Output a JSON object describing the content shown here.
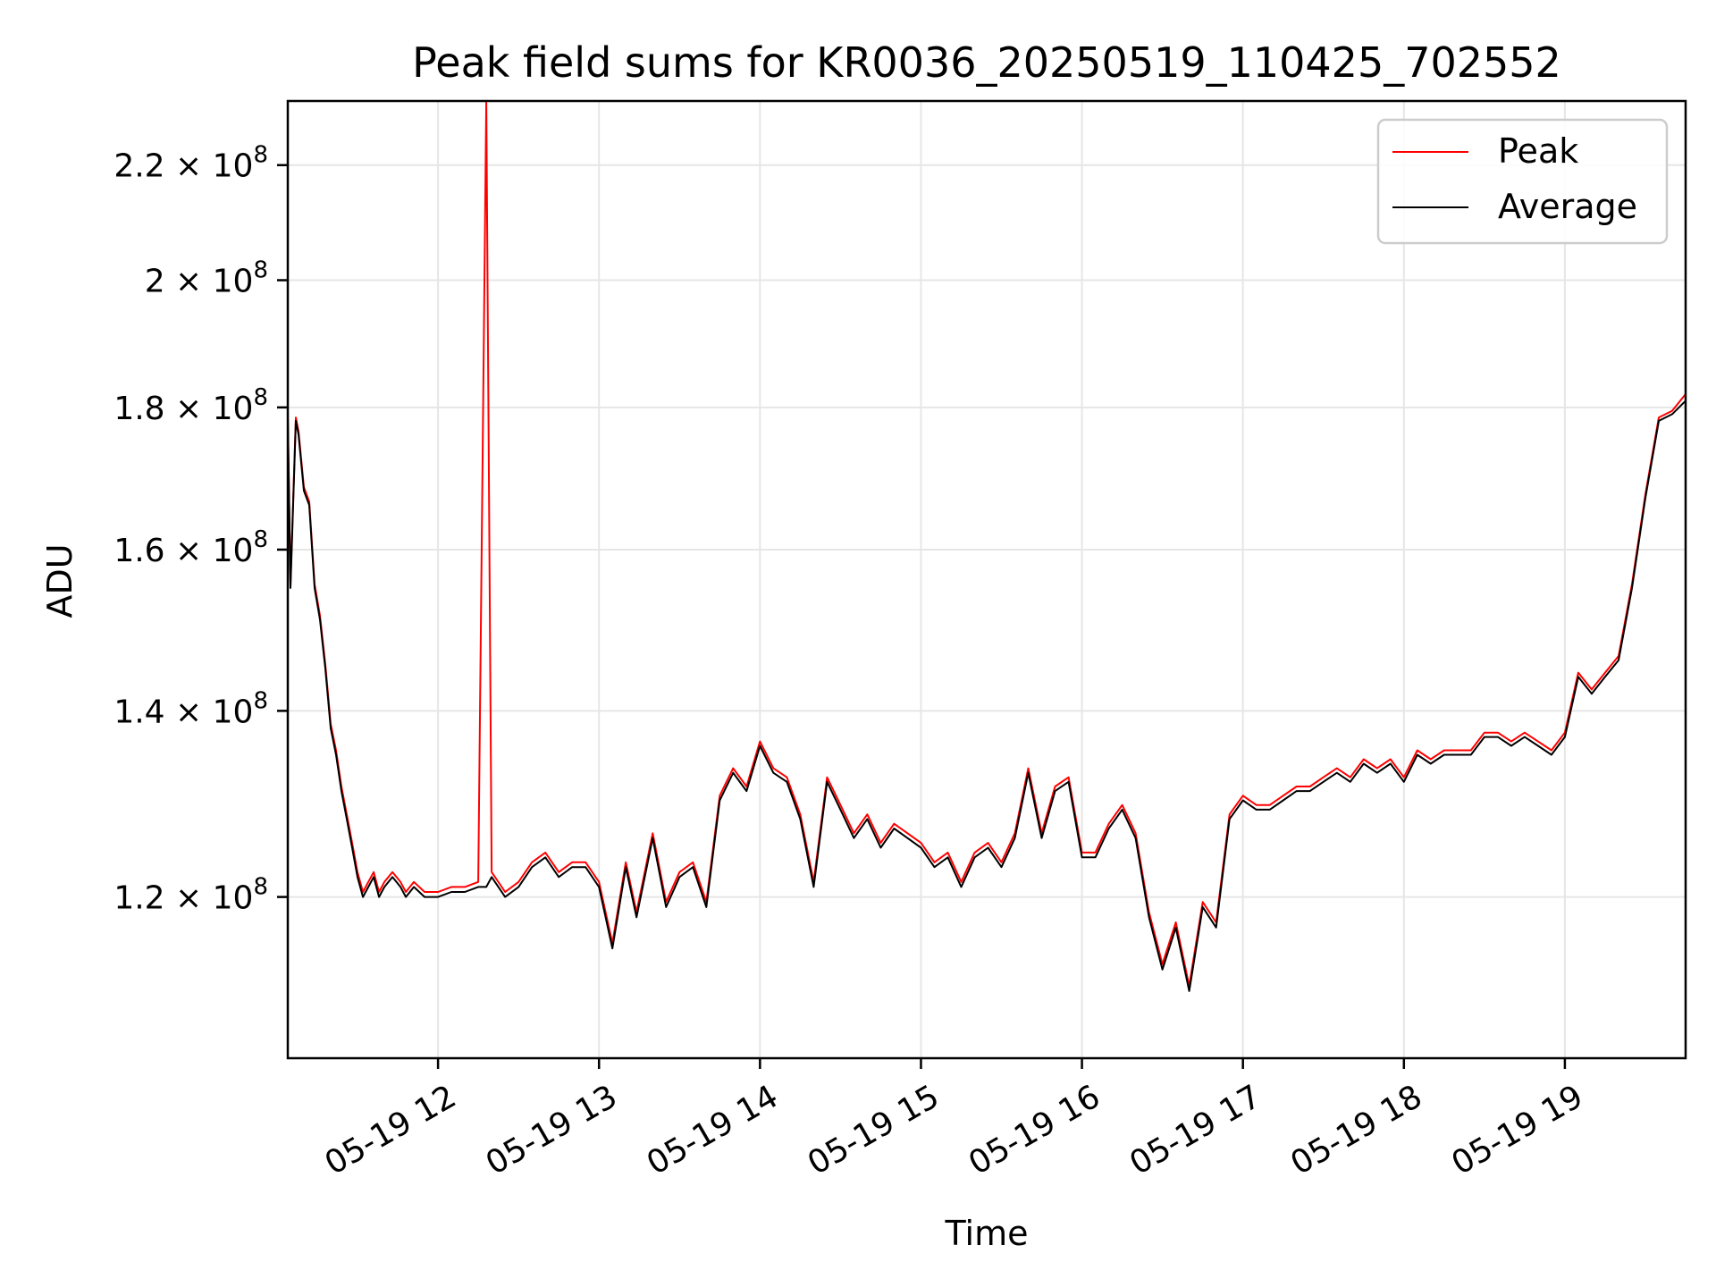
{
  "chart_data": {
    "type": "line",
    "title": "Peak field sums for KR0036_20250519_110425_702552",
    "xlabel": "Time",
    "ylabel": "ADU",
    "yscale": "log",
    "grid": true,
    "legend_position": "top-right",
    "xlim": [
      "2025-05-19 11:04",
      "2025-05-19 19:45"
    ],
    "ylim": [
      105000000,
      232000000
    ],
    "x_ticks": [
      {
        "value": "2025-05-19 12:00",
        "label": "05-19 12"
      },
      {
        "value": "2025-05-19 13:00",
        "label": "05-19 13"
      },
      {
        "value": "2025-05-19 14:00",
        "label": "05-19 14"
      },
      {
        "value": "2025-05-19 15:00",
        "label": "05-19 15"
      },
      {
        "value": "2025-05-19 16:00",
        "label": "05-19 16"
      },
      {
        "value": "2025-05-19 17:00",
        "label": "05-19 17"
      },
      {
        "value": "2025-05-19 18:00",
        "label": "05-19 18"
      },
      {
        "value": "2025-05-19 19:00",
        "label": "05-19 19"
      }
    ],
    "y_ticks": [
      {
        "value": 120000000,
        "label": "1.2 × 10",
        "exp": "8"
      },
      {
        "value": 140000000,
        "label": "1.4 × 10",
        "exp": "8"
      },
      {
        "value": 160000000,
        "label": "1.6 × 10",
        "exp": "8"
      },
      {
        "value": 180000000,
        "label": "1.8 × 10",
        "exp": "8"
      },
      {
        "value": 200000000,
        "label": "2 × 10",
        "exp": "8"
      },
      {
        "value": 220000000,
        "label": "2.2 × 10",
        "exp": "8"
      }
    ],
    "x": [
      "2025-05-19 11:04",
      "2025-05-19 11:05",
      "2025-05-19 11:07",
      "2025-05-19 11:08",
      "2025-05-19 11:10",
      "2025-05-19 11:12",
      "2025-05-19 11:14",
      "2025-05-19 11:16",
      "2025-05-19 11:18",
      "2025-05-19 11:20",
      "2025-05-19 11:22",
      "2025-05-19 11:24",
      "2025-05-19 11:26",
      "2025-05-19 11:28",
      "2025-05-19 11:30",
      "2025-05-19 11:32",
      "2025-05-19 11:34",
      "2025-05-19 11:36",
      "2025-05-19 11:38",
      "2025-05-19 11:40",
      "2025-05-19 11:43",
      "2025-05-19 11:46",
      "2025-05-19 11:48",
      "2025-05-19 11:51",
      "2025-05-19 11:55",
      "2025-05-19 12:00",
      "2025-05-19 12:05",
      "2025-05-19 12:10",
      "2025-05-19 12:15",
      "2025-05-19 12:18",
      "2025-05-19 12:20",
      "2025-05-19 12:25",
      "2025-05-19 12:30",
      "2025-05-19 12:35",
      "2025-05-19 12:40",
      "2025-05-19 12:45",
      "2025-05-19 12:50",
      "2025-05-19 12:55",
      "2025-05-19 13:00",
      "2025-05-19 13:05",
      "2025-05-19 13:10",
      "2025-05-19 13:14",
      "2025-05-19 13:20",
      "2025-05-19 13:25",
      "2025-05-19 13:30",
      "2025-05-19 13:35",
      "2025-05-19 13:40",
      "2025-05-19 13:45",
      "2025-05-19 13:50",
      "2025-05-19 13:55",
      "2025-05-19 14:00",
      "2025-05-19 14:05",
      "2025-05-19 14:10",
      "2025-05-19 14:15",
      "2025-05-19 14:20",
      "2025-05-19 14:25",
      "2025-05-19 14:30",
      "2025-05-19 14:35",
      "2025-05-19 14:40",
      "2025-05-19 14:45",
      "2025-05-19 14:50",
      "2025-05-19 14:55",
      "2025-05-19 15:00",
      "2025-05-19 15:05",
      "2025-05-19 15:10",
      "2025-05-19 15:15",
      "2025-05-19 15:20",
      "2025-05-19 15:25",
      "2025-05-19 15:30",
      "2025-05-19 15:35",
      "2025-05-19 15:40",
      "2025-05-19 15:45",
      "2025-05-19 15:50",
      "2025-05-19 15:55",
      "2025-05-19 16:00",
      "2025-05-19 16:05",
      "2025-05-19 16:10",
      "2025-05-19 16:15",
      "2025-05-19 16:20",
      "2025-05-19 16:25",
      "2025-05-19 16:30",
      "2025-05-19 16:35",
      "2025-05-19 16:40",
      "2025-05-19 16:45",
      "2025-05-19 16:50",
      "2025-05-19 16:55",
      "2025-05-19 17:00",
      "2025-05-19 17:05",
      "2025-05-19 17:10",
      "2025-05-19 17:15",
      "2025-05-19 17:20",
      "2025-05-19 17:25",
      "2025-05-19 17:30",
      "2025-05-19 17:35",
      "2025-05-19 17:40",
      "2025-05-19 17:45",
      "2025-05-19 17:50",
      "2025-05-19 17:55",
      "2025-05-19 18:00",
      "2025-05-19 18:05",
      "2025-05-19 18:10",
      "2025-05-19 18:15",
      "2025-05-19 18:20",
      "2025-05-19 18:25",
      "2025-05-19 18:30",
      "2025-05-19 18:35",
      "2025-05-19 18:40",
      "2025-05-19 18:45",
      "2025-05-19 18:50",
      "2025-05-19 18:55",
      "2025-05-19 19:00",
      "2025-05-19 19:05",
      "2025-05-19 19:10",
      "2025-05-19 19:15",
      "2025-05-19 19:20",
      "2025-05-19 19:25",
      "2025-05-19 19:30",
      "2025-05-19 19:35",
      "2025-05-19 19:40",
      "2025-05-19 19:45"
    ],
    "series": [
      {
        "name": "Average",
        "color": "#000000",
        "values": [
          178.5,
          155,
          178,
          176,
          168,
          166,
          155,
          151,
          145,
          138,
          135,
          131,
          128,
          125,
          122,
          120,
          121,
          122,
          120,
          121,
          122,
          121,
          120,
          121,
          120,
          120,
          120.5,
          120.5,
          121,
          121,
          122,
          120,
          121,
          123,
          124,
          122,
          123,
          123,
          121,
          115,
          123,
          118,
          126,
          119,
          122,
          123,
          119,
          130,
          133,
          131,
          136,
          133,
          132,
          128,
          121,
          132,
          129,
          126,
          128,
          125,
          127,
          126,
          125,
          123,
          124,
          121,
          124,
          125,
          123,
          126,
          133,
          126,
          131,
          132,
          124,
          124,
          127,
          129,
          126,
          118,
          113,
          117,
          111,
          119,
          117,
          128,
          130,
          129,
          129,
          130,
          131,
          131,
          132,
          133,
          132,
          134,
          133,
          134,
          132,
          135,
          134,
          135,
          135,
          135,
          137,
          137,
          136,
          137,
          136,
          135,
          137,
          144,
          142,
          144,
          146,
          155,
          167,
          178,
          179,
          181
        ]
      },
      {
        "name": "Peak",
        "color": "#ff0000",
        "values": [
          179,
          155.5,
          178.5,
          176.5,
          168.5,
          166.5,
          155.5,
          151.5,
          145.5,
          138.5,
          135.5,
          131.5,
          128.5,
          125.5,
          122.5,
          120.5,
          121.5,
          122.5,
          120.5,
          121.5,
          122.5,
          121.5,
          120.5,
          121.5,
          120.5,
          120.5,
          121,
          121,
          121.5,
          232,
          122.5,
          120.5,
          121.5,
          123.5,
          124.5,
          122.5,
          123.5,
          123.5,
          121.5,
          115.5,
          123.5,
          118.5,
          126.5,
          119.5,
          122.5,
          123.5,
          119.5,
          130.5,
          133.5,
          131.5,
          136.5,
          133.5,
          132.5,
          128.5,
          121.5,
          132.5,
          129.5,
          126.5,
          128.5,
          125.5,
          127.5,
          126.5,
          125.5,
          123.5,
          124.5,
          121.5,
          124.5,
          125.5,
          123.5,
          126.5,
          133.5,
          126.5,
          131.5,
          132.5,
          124.5,
          124.5,
          127.5,
          129.5,
          126.5,
          118.5,
          113.5,
          117.5,
          111.5,
          119.5,
          117.5,
          128.5,
          130.5,
          129.5,
          129.5,
          130.5,
          131.5,
          131.5,
          132.5,
          133.5,
          132.5,
          134.5,
          133.5,
          134.5,
          132.5,
          135.5,
          134.5,
          135.5,
          135.5,
          135.5,
          137.5,
          137.5,
          136.5,
          137.5,
          136.5,
          135.5,
          137.5,
          144.5,
          142.5,
          144.5,
          146.5,
          155.5,
          167.5,
          178.5,
          179.5,
          182
        ]
      }
    ],
    "value_unit": "1e6"
  }
}
